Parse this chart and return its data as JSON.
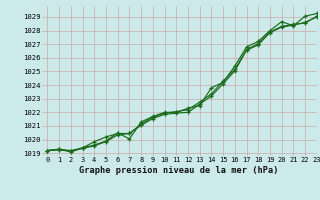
{
  "title": "Graphe pression niveau de la mer (hPa)",
  "bg_color": "#cceaea",
  "grid_color": "#bbbbbb",
  "line_color": "#1a6b1a",
  "xlim": [
    -0.5,
    23
  ],
  "ylim": [
    1018.8,
    1029.8
  ],
  "yticks": [
    1019,
    1020,
    1021,
    1022,
    1023,
    1024,
    1025,
    1026,
    1027,
    1028,
    1029
  ],
  "xticks": [
    0,
    1,
    2,
    3,
    4,
    5,
    6,
    7,
    8,
    9,
    10,
    11,
    12,
    13,
    14,
    15,
    16,
    17,
    18,
    19,
    20,
    21,
    22,
    23
  ],
  "hours": [
    0,
    1,
    2,
    3,
    4,
    5,
    6,
    7,
    8,
    9,
    10,
    11,
    12,
    13,
    14,
    15,
    16,
    17,
    18,
    19,
    20,
    21,
    22,
    23
  ],
  "line1": [
    1019.2,
    1019.3,
    1019.1,
    1019.4,
    1019.6,
    1019.9,
    1020.5,
    1020.05,
    1021.3,
    1021.7,
    1022.0,
    1022.0,
    1022.3,
    1022.5,
    1023.8,
    1024.2,
    1025.4,
    1026.8,
    1027.2,
    1028.0,
    1028.65,
    1028.35,
    1029.05,
    1029.25
  ],
  "line2": [
    1019.2,
    1019.25,
    1019.15,
    1019.35,
    1019.55,
    1019.85,
    1020.35,
    1020.45,
    1021.05,
    1021.55,
    1021.85,
    1021.95,
    1022.0,
    1022.6,
    1023.2,
    1024.1,
    1025.05,
    1026.55,
    1026.95,
    1027.85,
    1028.25,
    1028.4,
    1028.6,
    1029.0
  ],
  "line3": [
    1019.2,
    1019.3,
    1019.2,
    1019.4,
    1019.85,
    1020.2,
    1020.45,
    1020.45,
    1021.15,
    1021.65,
    1021.95,
    1022.05,
    1022.2,
    1022.75,
    1023.35,
    1024.3,
    1025.15,
    1026.6,
    1027.05,
    1027.9,
    1028.3,
    1028.45,
    1028.55,
    1029.05
  ]
}
